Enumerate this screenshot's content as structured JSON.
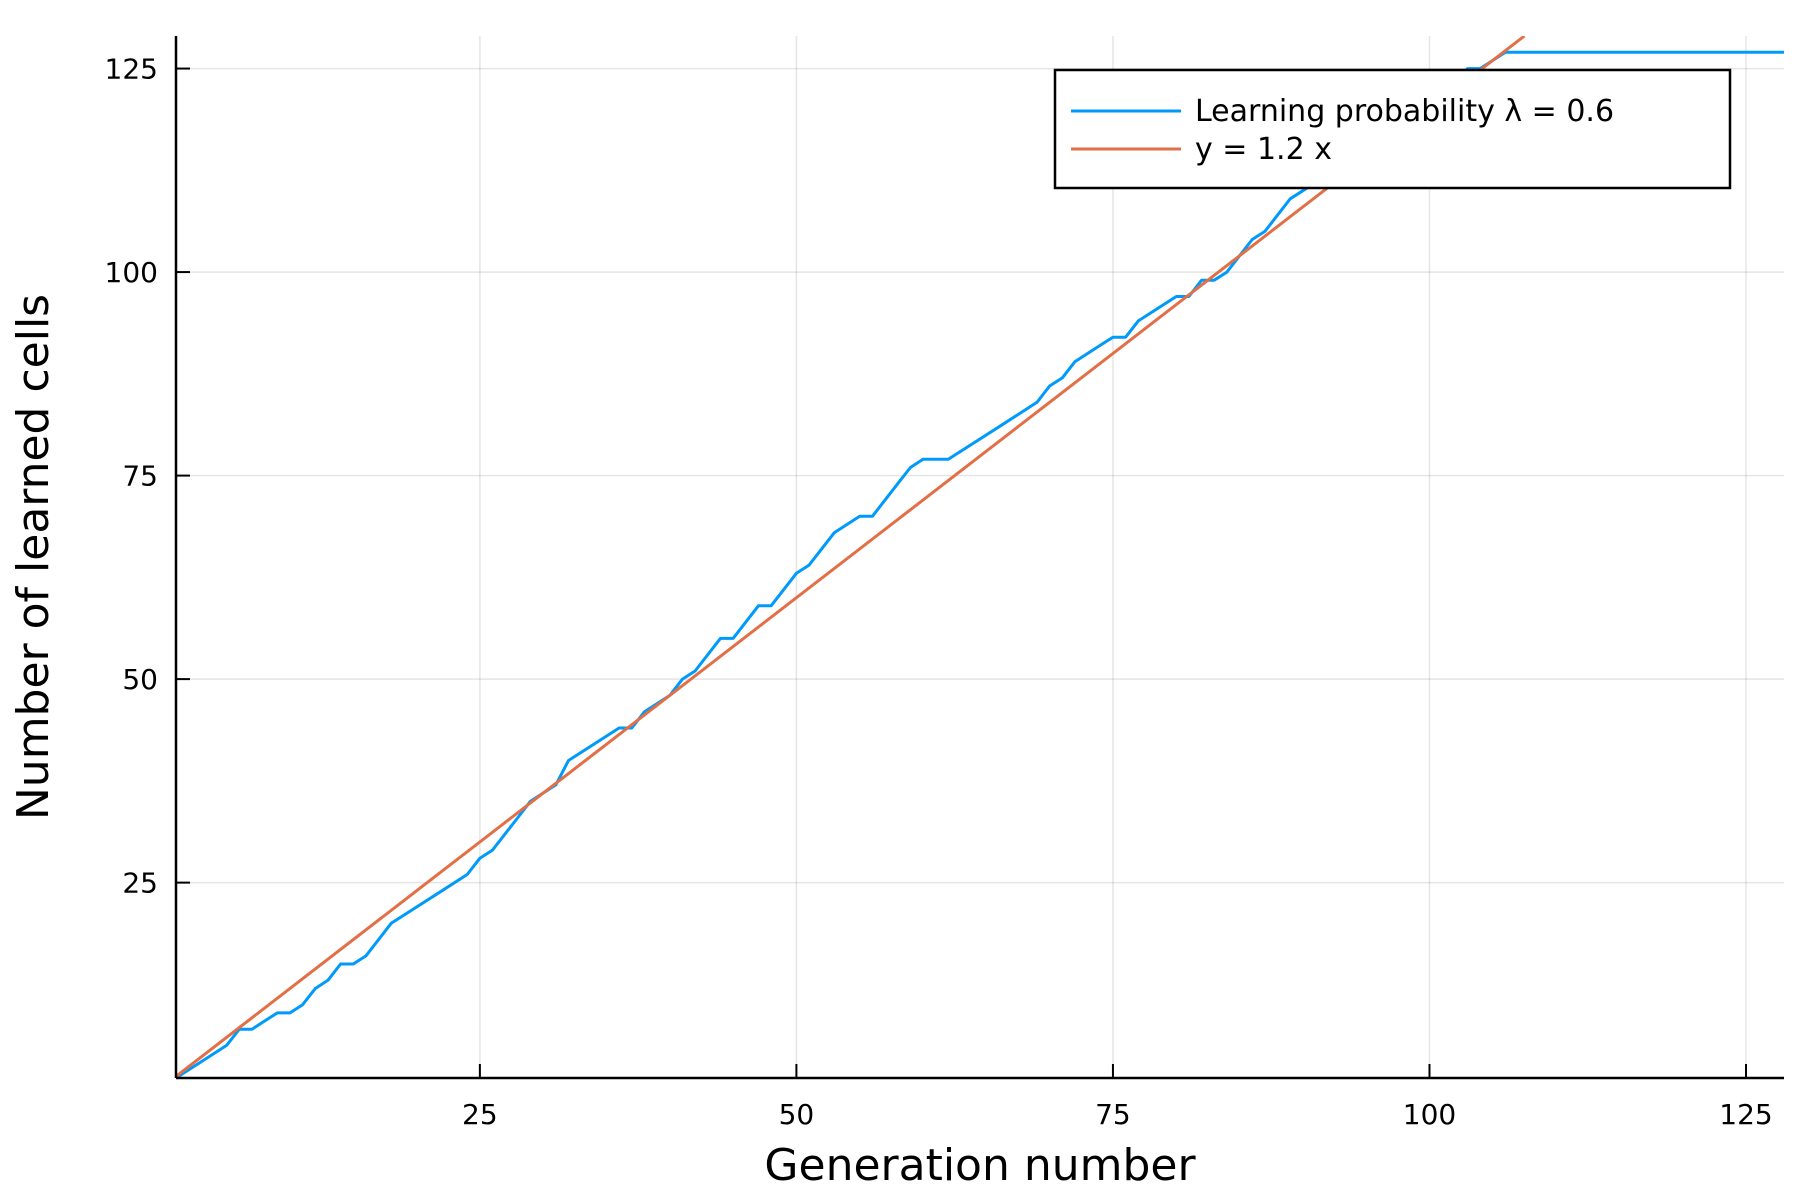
{
  "chart_data": {
    "type": "line",
    "title": "",
    "xlabel": "Generation number",
    "ylabel": "Number of learned cells",
    "xlim": [
      1,
      128
    ],
    "ylim": [
      1,
      129
    ],
    "xticks": [
      25,
      50,
      75,
      100,
      125
    ],
    "yticks": [
      25,
      50,
      75,
      100,
      125
    ],
    "grid": true,
    "legend_position": "top-right",
    "series": [
      {
        "name": "Learning probability λ = 0.6",
        "color": "#009AFA",
        "x": [
          1,
          5,
          6,
          7,
          8,
          9,
          10,
          11,
          12,
          13,
          14,
          15,
          16,
          18,
          20,
          22,
          24,
          25,
          26,
          28,
          29,
          31,
          32,
          34,
          36,
          37,
          38,
          40,
          41,
          42,
          44,
          45,
          46,
          47,
          48,
          50,
          51,
          53,
          55,
          56,
          58,
          59,
          60,
          62,
          64,
          66,
          68,
          69,
          70,
          71,
          72,
          74,
          75,
          76,
          77,
          79,
          80,
          81,
          82,
          83,
          84,
          86,
          87,
          89,
          90,
          92,
          94,
          96,
          98,
          100,
          102,
          103,
          104,
          106,
          108,
          110,
          115,
          120,
          125,
          128
        ],
        "y": [
          1,
          5,
          7,
          7,
          8,
          9,
          9,
          10,
          12,
          13,
          15,
          15,
          16,
          20,
          22,
          24,
          26,
          28,
          29,
          33,
          35,
          37,
          40,
          42,
          44,
          44,
          46,
          48,
          50,
          51,
          55,
          55,
          57,
          59,
          59,
          63,
          64,
          68,
          70,
          70,
          74,
          76,
          77,
          77,
          79,
          81,
          83,
          84,
          86,
          87,
          89,
          91,
          92,
          92,
          94,
          96,
          97,
          97,
          99,
          99,
          100,
          104,
          105,
          109,
          110,
          112,
          114,
          117,
          119,
          121,
          123,
          125,
          125,
          127,
          127,
          127,
          127,
          127,
          127,
          127
        ]
      },
      {
        "name": "y = 1.2 x",
        "color": "#E26F46",
        "x": [
          1,
          107.5
        ],
        "y": [
          1.2,
          129
        ]
      }
    ]
  }
}
